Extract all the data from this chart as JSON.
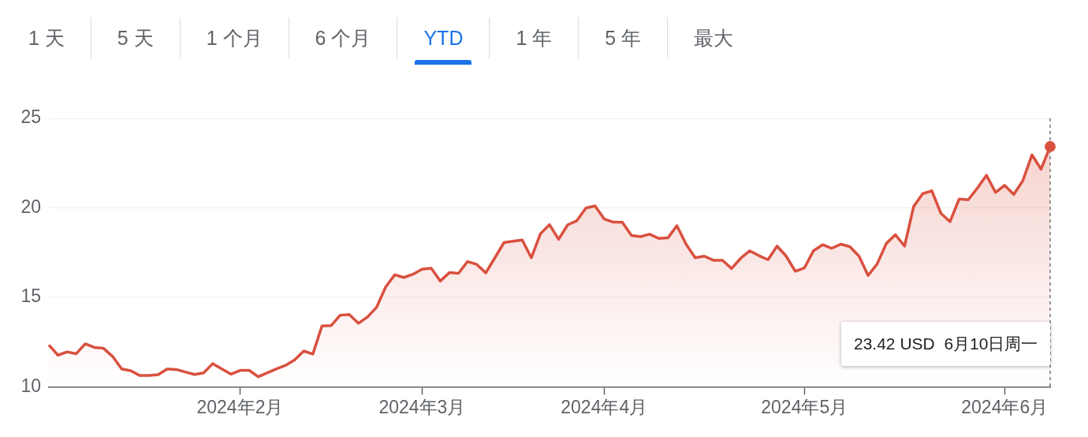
{
  "chart_data": {
    "type": "area",
    "categories": [
      null,
      null,
      null,
      null,
      null,
      null,
      null,
      null,
      null,
      null,
      null,
      null,
      null,
      null,
      null,
      null,
      null,
      null,
      null,
      null,
      null,
      "2024年2月",
      null,
      null,
      null,
      null,
      null,
      null,
      null,
      null,
      null,
      null,
      null,
      null,
      null,
      null,
      null,
      null,
      null,
      null,
      null,
      "2024年3月",
      null,
      null,
      null,
      null,
      null,
      null,
      null,
      null,
      null,
      null,
      null,
      null,
      null,
      null,
      null,
      null,
      null,
      null,
      null,
      "2024年4月",
      null,
      null,
      null,
      null,
      null,
      null,
      null,
      null,
      null,
      null,
      null,
      null,
      null,
      null,
      null,
      null,
      null,
      null,
      null,
      null,
      null,
      "2024年5月",
      null,
      null,
      null,
      null,
      null,
      null,
      null,
      null,
      null,
      null,
      null,
      null,
      null,
      null,
      null,
      null,
      null,
      null,
      null,
      null,
      null,
      "2024年6月",
      null,
      null,
      null,
      null,
      null
    ],
    "series": [
      {
        "color": "#d9503f",
        "values": [
          12.34,
          11.77,
          11.95,
          11.85,
          12.4,
          12.2,
          12.15,
          11.7,
          11.0,
          10.9,
          10.63,
          10.63,
          10.68,
          11.0,
          10.97,
          10.83,
          10.69,
          10.78,
          11.3,
          11.0,
          10.71,
          10.92,
          10.92,
          10.56,
          10.78,
          11.0,
          11.2,
          11.5,
          12.0,
          11.83,
          13.4,
          13.42,
          14.0,
          14.04,
          13.55,
          13.9,
          14.44,
          15.58,
          16.26,
          16.11,
          16.29,
          16.57,
          16.63,
          15.91,
          16.38,
          16.34,
          17.0,
          16.84,
          16.37,
          17.21,
          18.06,
          18.14,
          18.2,
          17.21,
          18.55,
          19.06,
          18.24,
          19.05,
          19.28,
          19.99,
          20.11,
          19.38,
          19.2,
          19.19,
          18.46,
          18.39,
          18.53,
          18.29,
          18.32,
          19.0,
          17.97,
          17.21,
          17.3,
          17.07,
          17.07,
          16.61,
          17.18,
          17.6,
          17.33,
          17.1,
          17.86,
          17.3,
          16.46,
          16.64,
          17.6,
          17.94,
          17.74,
          17.97,
          17.83,
          17.3,
          16.22,
          16.87,
          18.01,
          18.5,
          17.86,
          20.07,
          20.79,
          20.95,
          19.69,
          19.23,
          20.49,
          20.45,
          21.1,
          21.82,
          20.86,
          21.26,
          20.75,
          21.52,
          22.96,
          22.16,
          23.42
        ]
      }
    ],
    "ylim": [
      10,
      25
    ],
    "yticks": [
      10,
      15,
      20,
      25
    ],
    "grid": "y",
    "legend": false,
    "annotations": [
      "1 天",
      "5 天",
      "1 个月",
      "6 个月",
      "YTD",
      "1 年",
      "5 年",
      "最大",
      "23.42 USD  6月10日周一"
    ]
  }
}
